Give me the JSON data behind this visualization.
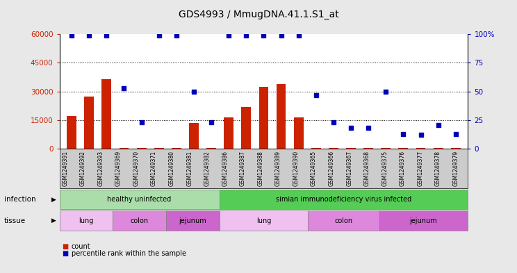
{
  "title": "GDS4993 / MmugDNA.41.1.S1_at",
  "samples": [
    "GSM1249391",
    "GSM1249392",
    "GSM1249393",
    "GSM1249369",
    "GSM1249370",
    "GSM1249371",
    "GSM1249380",
    "GSM1249381",
    "GSM1249382",
    "GSM1249386",
    "GSM1249387",
    "GSM1249388",
    "GSM1249389",
    "GSM1249390",
    "GSM1249365",
    "GSM1249366",
    "GSM1249367",
    "GSM1249368",
    "GSM1249375",
    "GSM1249376",
    "GSM1249377",
    "GSM1249378",
    "GSM1249379"
  ],
  "counts": [
    17000,
    27500,
    36500,
    500,
    600,
    400,
    500,
    13500,
    400,
    16500,
    22000,
    32500,
    34000,
    16500,
    400,
    500,
    400,
    500,
    400,
    400,
    400,
    400,
    400
  ],
  "percentiles": [
    99,
    99,
    99,
    53,
    23,
    99,
    99,
    50,
    23,
    99,
    99,
    99,
    99,
    99,
    47,
    23,
    18,
    18,
    50,
    13,
    12,
    21,
    13
  ],
  "bar_color": "#cc2200",
  "dot_color": "#0000bb",
  "left_yticks": [
    0,
    15000,
    30000,
    45000,
    60000
  ],
  "left_ytick_labels": [
    "0",
    "15000",
    "30000",
    "45000",
    "60000"
  ],
  "right_yticks": [
    0,
    25,
    50,
    75,
    100
  ],
  "right_ytick_labels": [
    "0",
    "25",
    "50",
    "75",
    "100%"
  ],
  "ylim_left": [
    0,
    60000
  ],
  "ylim_right": [
    0,
    100
  ],
  "grid_color": "#000000",
  "infection_groups": [
    {
      "label": "healthy uninfected",
      "start": 0,
      "end": 9,
      "color": "#aaddaa"
    },
    {
      "label": "simian immunodeficiency virus infected",
      "start": 9,
      "end": 23,
      "color": "#55cc55"
    }
  ],
  "tissue_groups": [
    {
      "label": "lung",
      "start": 0,
      "end": 3,
      "color": "#f0c0f0"
    },
    {
      "label": "colon",
      "start": 3,
      "end": 6,
      "color": "#dd88dd"
    },
    {
      "label": "jejunum",
      "start": 6,
      "end": 9,
      "color": "#cc66cc"
    },
    {
      "label": "lung",
      "start": 9,
      "end": 14,
      "color": "#f0c0f0"
    },
    {
      "label": "colon",
      "start": 14,
      "end": 18,
      "color": "#dd88dd"
    },
    {
      "label": "jejunum",
      "start": 18,
      "end": 23,
      "color": "#cc66cc"
    }
  ],
  "infection_label": "infection",
  "tissue_label": "tissue",
  "legend_count_label": "count",
  "legend_pct_label": "percentile rank within the sample",
  "background_color": "#e8e8e8",
  "plot_bg_color": "#ffffff",
  "xtick_area_color": "#cccccc"
}
